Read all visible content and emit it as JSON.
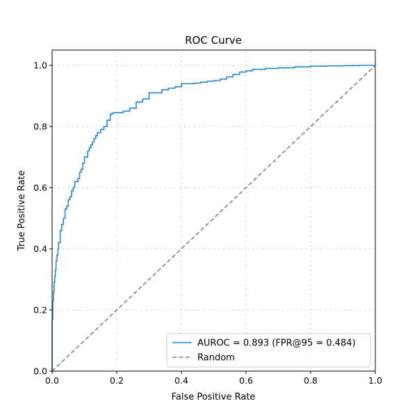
{
  "chart_data": {
    "type": "line",
    "title": "ROC Curve",
    "xlabel": "False Positive Rate",
    "ylabel": "True Positive Rate",
    "xlim": [
      0.0,
      1.0
    ],
    "ylim": [
      0.0,
      1.05
    ],
    "xticks": [
      "0.0",
      "0.2",
      "0.4",
      "0.6",
      "0.8",
      "1.0"
    ],
    "yticks": [
      "0.0",
      "0.2",
      "0.4",
      "0.6",
      "0.8",
      "1.0"
    ],
    "grid": true,
    "legend_position": "lower-right",
    "series": [
      {
        "name": "AUROC = 0.893 (FPR@95 = 0.484)",
        "color": "#1f88d8",
        "style": "solid",
        "x": [
          0.0,
          0.0,
          0.002,
          0.004,
          0.006,
          0.008,
          0.01,
          0.012,
          0.015,
          0.018,
          0.02,
          0.025,
          0.03,
          0.035,
          0.04,
          0.045,
          0.05,
          0.055,
          0.06,
          0.065,
          0.07,
          0.075,
          0.08,
          0.085,
          0.09,
          0.095,
          0.1,
          0.11,
          0.115,
          0.12,
          0.125,
          0.13,
          0.135,
          0.14,
          0.15,
          0.16,
          0.17,
          0.18,
          0.185,
          0.19,
          0.195,
          0.2,
          0.22,
          0.24,
          0.26,
          0.28,
          0.3,
          0.32,
          0.34,
          0.36,
          0.38,
          0.4,
          0.42,
          0.44,
          0.46,
          0.48,
          0.5,
          0.52,
          0.54,
          0.56,
          0.58,
          0.6,
          0.62,
          0.66,
          0.7,
          0.75,
          0.8,
          0.85,
          0.9,
          0.95,
          1.0
        ],
        "y": [
          0.0,
          0.17,
          0.23,
          0.26,
          0.29,
          0.31,
          0.33,
          0.36,
          0.38,
          0.4,
          0.42,
          0.46,
          0.48,
          0.5,
          0.53,
          0.54,
          0.56,
          0.57,
          0.59,
          0.6,
          0.62,
          0.62,
          0.63,
          0.65,
          0.66,
          0.68,
          0.7,
          0.72,
          0.73,
          0.74,
          0.75,
          0.76,
          0.77,
          0.78,
          0.79,
          0.8,
          0.82,
          0.84,
          0.843,
          0.845,
          0.845,
          0.845,
          0.85,
          0.86,
          0.88,
          0.89,
          0.91,
          0.91,
          0.92,
          0.925,
          0.93,
          0.94,
          0.94,
          0.942,
          0.945,
          0.948,
          0.95,
          0.955,
          0.962,
          0.97,
          0.978,
          0.982,
          0.987,
          0.99,
          0.992,
          0.995,
          0.997,
          0.998,
          0.999,
          1.0,
          1.0
        ]
      },
      {
        "name": "Random",
        "color": "#808080",
        "style": "dashed",
        "x": [
          0.0,
          1.0
        ],
        "y": [
          0.0,
          1.0
        ]
      }
    ]
  }
}
